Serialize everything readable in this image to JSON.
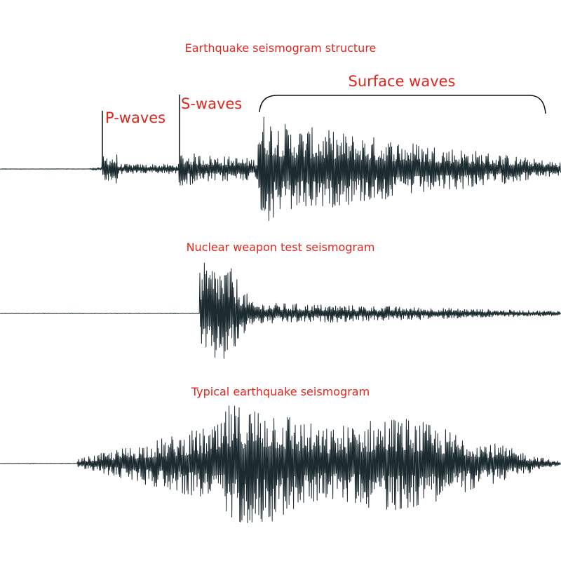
{
  "diagrams": [
    {
      "title": "Earthquake seismogram structure",
      "labels": [
        "P-waves",
        "S-waves",
        "Surface waves"
      ]
    },
    {
      "title": "Nuclear weapon test seismogram"
    },
    {
      "title": "Typical earthquake seismogram"
    }
  ]
}
